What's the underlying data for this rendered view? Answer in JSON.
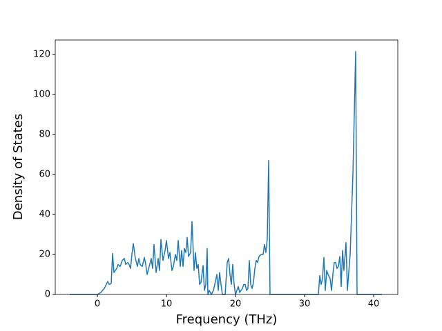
{
  "chart_data": {
    "type": "line",
    "xlabel": "Frequency (THz)",
    "ylabel": "Density of States",
    "color": "#1f77b4",
    "x": [
      -4,
      0,
      0.5,
      1,
      1.5,
      1.7,
      2,
      2.2,
      2.4,
      2.8,
      3,
      3.3,
      3.6,
      3.9,
      4.1,
      4.4,
      4.6,
      4.8,
      5,
      5.2,
      5.5,
      5.8,
      6,
      6.2,
      6.5,
      6.8,
      7,
      7.2,
      7.5,
      7.8,
      8,
      8.2,
      8.5,
      8.8,
      9,
      9.2,
      9.5,
      9.8,
      10,
      10.3,
      10.5,
      10.8,
      11,
      11.3,
      11.5,
      11.7,
      12,
      12.2,
      12.4,
      12.6,
      12.8,
      13,
      13.2,
      13.5,
      13.7,
      14,
      14.2,
      14.4,
      14.6,
      14.8,
      15,
      15.3,
      15.5,
      15.7,
      15.9,
      16,
      16.2,
      16.5,
      16.8,
      17,
      17.3,
      17.5,
      17.7,
      17.9,
      18.1,
      18.5,
      18.8,
      19,
      19.2,
      19.4,
      19.6,
      19.8,
      20,
      20.2,
      20.4,
      20.6,
      20.8,
      21,
      21.2,
      21.4,
      21.6,
      21.8,
      22,
      22.2,
      22.4,
      22.6,
      22.8,
      23,
      23.2,
      23.4,
      23.7,
      24,
      24.2,
      24.4,
      24.6,
      24.8,
      25,
      32,
      32.2,
      32.4,
      32.6,
      32.8,
      33,
      33.2,
      33.4,
      33.7,
      33.9,
      34.1,
      34.3,
      34.5,
      34.7,
      34.9,
      35.1,
      35.3,
      35.5,
      35.7,
      36,
      36.2,
      36.6,
      37,
      37.4,
      37.6,
      41.2
    ],
    "values": [
      0,
      0,
      1,
      3,
      6.5,
      5,
      5.5,
      20.5,
      11,
      13,
      15,
      14,
      17,
      18,
      15,
      16,
      15,
      13,
      20,
      25.5,
      18,
      14,
      18,
      15,
      14,
      18.5,
      15,
      10,
      14,
      18,
      13,
      25,
      11,
      18,
      12,
      27.5,
      17,
      22,
      27,
      18,
      21,
      12,
      14,
      20,
      17,
      27,
      14,
      22,
      14,
      23,
      21,
      28.5,
      19,
      21,
      36.5,
      12,
      21,
      13,
      15,
      5,
      6,
      14.5,
      2,
      5,
      23,
      0,
      2,
      0,
      2,
      5,
      10,
      2,
      11,
      5,
      0,
      0,
      16,
      18,
      10,
      5,
      15,
      5,
      0,
      2,
      4,
      1,
      2,
      3,
      5,
      5,
      2,
      3,
      17,
      5,
      3,
      6,
      13,
      17,
      16,
      19,
      20,
      20,
      25,
      21,
      28,
      67,
      0,
      0,
      9.5,
      5,
      8,
      18.5,
      2,
      12,
      10,
      8,
      2,
      10,
      16,
      16,
      13,
      14,
      19,
      4,
      22,
      12,
      26,
      2,
      20,
      60,
      121.5,
      0,
      0
    ],
    "xlim": [
      -6.1,
      43.5
    ],
    "xticks": [
      0,
      10,
      20,
      30,
      40
    ],
    "ylim": [
      0,
      127.3
    ],
    "yticks": [
      0,
      20,
      40,
      60,
      80,
      100,
      120
    ]
  }
}
